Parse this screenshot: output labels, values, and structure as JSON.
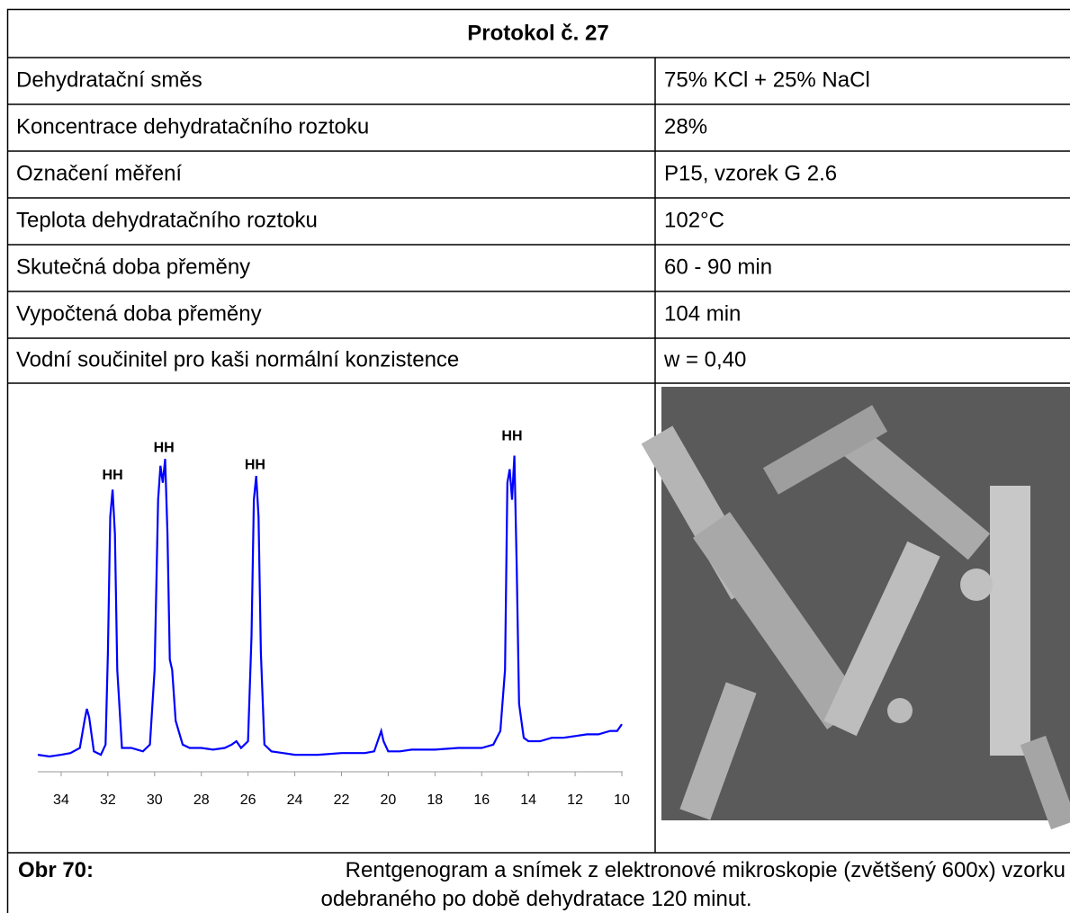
{
  "table": {
    "title": "Protokol č. 27",
    "rows": [
      [
        "Dehydratační směs",
        "75% KCl + 25% NaCl"
      ],
      [
        "Koncentrace dehydratačního roztoku",
        "28%"
      ],
      [
        "Označení měření",
        "P15, vzorek G 2.6"
      ],
      [
        "Teplota dehydratačního roztoku",
        "102°C"
      ],
      [
        "Skutečná doba přeměny",
        "60 - 90 min"
      ],
      [
        "Vypočtená doba přeměny",
        "104 min"
      ],
      [
        "Vodní součinitel pro kaši normální konzistence",
        "w = 0,40"
      ]
    ]
  },
  "chart_data": {
    "type": "line",
    "x": [
      35,
      34.5,
      34,
      33.6,
      33.2,
      33.0,
      32.9,
      32.8,
      32.6,
      32.3,
      32.1,
      32.0,
      31.9,
      31.8,
      31.7,
      31.6,
      31.4,
      31.0,
      30.5,
      30.2,
      30.0,
      29.85,
      29.75,
      29.65,
      29.55,
      29.45,
      29.35,
      29.25,
      29.1,
      28.8,
      28.5,
      28,
      27.5,
      27,
      26.7,
      26.5,
      26.3,
      26.0,
      25.85,
      25.75,
      25.65,
      25.55,
      25.45,
      25.3,
      25.0,
      24.5,
      24,
      23,
      22,
      21,
      20.6,
      20.4,
      20.3,
      20.2,
      20.0,
      19.5,
      19,
      18,
      17,
      16,
      15.5,
      15.2,
      15.0,
      14.9,
      14.8,
      14.7,
      14.6,
      14.5,
      14.4,
      14.2,
      14.0,
      13.5,
      13,
      12.5,
      12,
      11.5,
      11,
      10.5,
      10.2,
      10
    ],
    "values": [
      5,
      4.5,
      5,
      5.5,
      7,
      15,
      18.5,
      16,
      6,
      5,
      8,
      35,
      75,
      83,
      70,
      30,
      7,
      7,
      6,
      8,
      30,
      80,
      90,
      85,
      92,
      70,
      33,
      30,
      15,
      8,
      7,
      7,
      6.5,
      7,
      8,
      9,
      7,
      9,
      40,
      80,
      87,
      75,
      35,
      8,
      6,
      5.5,
      5,
      5,
      5.5,
      5.5,
      6,
      10,
      12,
      9,
      6,
      6,
      6.5,
      6.5,
      7,
      7,
      8,
      12,
      30,
      85,
      89,
      80,
      93,
      60,
      20,
      10,
      9,
      9,
      10,
      10,
      10.5,
      11,
      11,
      12,
      12,
      14
    ],
    "color": "#0000ff",
    "xlim": [
      35,
      10
    ],
    "ylim": [
      0,
      100
    ],
    "xticks": [
      34,
      32,
      30,
      28,
      26,
      24,
      22,
      20,
      18,
      16,
      14,
      12,
      10
    ],
    "annotations": [
      {
        "text": "HH",
        "x": 31.8,
        "y": 86
      },
      {
        "text": "HH",
        "x": 29.6,
        "y": 94
      },
      {
        "text": "HH",
        "x": 25.7,
        "y": 89
      },
      {
        "text": "HH",
        "x": 14.7,
        "y": 97.5
      }
    ]
  },
  "caption": {
    "label": "Obr 70:",
    "lines": [
      "Rentgenogram a snímek z elektronové mikroskopie (zvětšený 600x) vzorku",
      "odebraného po době dehydratace 120 minut."
    ]
  }
}
